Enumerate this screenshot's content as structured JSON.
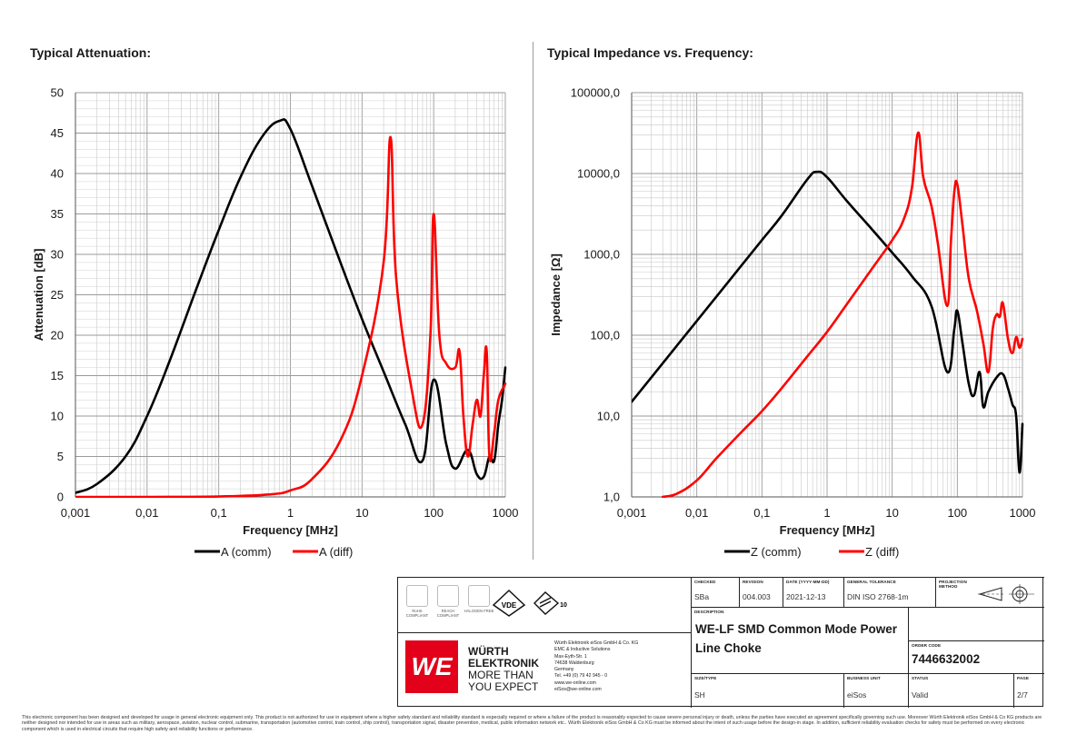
{
  "charts": {
    "left_title": "Typical Attenuation:",
    "right_title": "Typical Impedance vs. Frequency:"
  },
  "chart_data": [
    {
      "type": "line",
      "title": "Typical Attenuation:",
      "xlabel": "Frequency [MHz]",
      "ylabel": "Attenuation [dB]",
      "xscale": "log",
      "xlim": [
        0.001,
        1000
      ],
      "ylim": [
        0,
        50
      ],
      "xticks": [
        "0,001",
        "0,01",
        "0,1",
        "1",
        "10",
        "100",
        "1000"
      ],
      "yticks": [
        "0",
        "5",
        "10",
        "15",
        "20",
        "25",
        "30",
        "35",
        "40",
        "45",
        "50"
      ],
      "grid": true,
      "legend_position": "bottom",
      "series": [
        {
          "name": "A (comm)",
          "color": "#000000",
          "x": [
            0.001,
            0.002,
            0.005,
            0.01,
            0.02,
            0.05,
            0.1,
            0.2,
            0.4,
            0.7,
            1,
            2,
            5,
            10,
            20,
            40,
            70,
            100,
            150,
            200,
            300,
            400,
            500,
            600,
            700,
            800,
            900,
            1000
          ],
          "y": [
            0.5,
            1.6,
            5,
            10,
            16.5,
            26,
            33,
            39.5,
            44.5,
            46.5,
            45.5,
            38.5,
            29,
            22,
            15.5,
            9,
            4.5,
            14.5,
            6.5,
            3.5,
            5.8,
            2.8,
            2.5,
            5,
            4.5,
            9,
            12,
            16
          ]
        },
        {
          "name": "A (diff)",
          "color": "#ff0000",
          "x": [
            0.001,
            0.01,
            0.1,
            0.5,
            1,
            2,
            5,
            10,
            20,
            25,
            30,
            50,
            70,
            90,
            100,
            120,
            150,
            200,
            230,
            260,
            300,
            350,
            400,
            450,
            500,
            550,
            600,
            700,
            800,
            1000
          ],
          "y": [
            0,
            0,
            0.05,
            0.3,
            0.8,
            2.2,
            7,
            15,
            29,
            44.5,
            27,
            13,
            9,
            20,
            35,
            20,
            16.5,
            16,
            18,
            10,
            5,
            9,
            12,
            10,
            15,
            18,
            5,
            8,
            12,
            14
          ]
        }
      ]
    },
    {
      "type": "line",
      "title": "Typical Impedance vs. Frequency:",
      "xlabel": "Frequency [MHz]",
      "ylabel": "Impedance [Ω]",
      "xscale": "log",
      "yscale": "log",
      "xlim": [
        0.001,
        1000
      ],
      "ylim": [
        1,
        100000
      ],
      "xticks": [
        "0,001",
        "0,01",
        "0,1",
        "1",
        "10",
        "100",
        "1000"
      ],
      "yticks": [
        "1,0",
        "10,0",
        "100,0",
        "1000,0",
        "10000,0",
        "100000,0"
      ],
      "grid": true,
      "legend_position": "bottom",
      "series": [
        {
          "name": "Z  (comm)",
          "color": "#000000",
          "x": [
            0.001,
            0.002,
            0.005,
            0.01,
            0.02,
            0.05,
            0.1,
            0.2,
            0.5,
            0.7,
            1,
            2,
            5,
            10,
            20,
            40,
            70,
            90,
            100,
            120,
            150,
            180,
            220,
            250,
            300,
            400,
            500,
            600,
            700,
            800,
            900,
            1000
          ],
          "y": [
            15,
            30,
            75,
            150,
            300,
            750,
            1500,
            3000,
            8500,
            10500,
            9000,
            4600,
            2000,
            1050,
            540,
            230,
            35,
            120,
            200,
            80,
            25,
            18,
            35,
            13,
            20,
            30,
            33,
            22,
            14,
            10,
            2,
            8
          ]
        },
        {
          "name": "Z (diff)",
          "color": "#ff0000",
          "x": [
            0.003,
            0.005,
            0.01,
            0.02,
            0.05,
            0.1,
            0.2,
            0.5,
            1,
            2,
            5,
            10,
            15,
            20,
            25,
            30,
            40,
            50,
            70,
            80,
            90,
            100,
            120,
            150,
            200,
            250,
            300,
            350,
            400,
            450,
            500,
            600,
            700,
            800,
            900,
            1000
          ],
          "y": [
            1,
            1.1,
            1.6,
            3,
            6.5,
            11.5,
            22,
            55,
            110,
            240,
            680,
            1500,
            2700,
            6500,
            32000,
            9000,
            4000,
            1400,
            230,
            1500,
            6000,
            7300,
            2300,
            500,
            200,
            80,
            35,
            120,
            180,
            170,
            250,
            90,
            60,
            95,
            70,
            90
          ]
        }
      ]
    }
  ],
  "titleblock": {
    "checked_label": "CHECKED",
    "checked": "SBa",
    "revision_label": "REVISION",
    "revision": "004.003",
    "date_label": "DATE (YYYY-MM-DD)",
    "date": "2021-12-13",
    "tolerance_label": "GENERAL TOLERANCE",
    "tolerance": "DIN ISO 2768-1m",
    "projection_label": "PROJECTION METHOD",
    "description_label": "DESCRIPTION",
    "description_line1": "WE-LF SMD Common Mode Power",
    "description_line2": "Line Choke",
    "order_label": "ORDER CODE",
    "order_code": "7446632002",
    "size_label": "SIZE/TYPE",
    "size": "SH",
    "unit_label": "BUSINESS UNIT",
    "unit": "eiSos",
    "status_label": "STATUS",
    "status": "Valid",
    "page_label": "PAGE",
    "page": "2/7",
    "certs": [
      "RoHS COMPLIANT",
      "REACH COMPLIANT",
      "HALOGEN FREE"
    ],
    "vde": "VDE",
    "iec_number": "10",
    "brand_line1": "WÜRTH",
    "brand_line2": "ELEKTRONIK",
    "brand_line3": "MORE THAN",
    "brand_line4": "YOU EXPECT",
    "logo_text": "WE",
    "address": [
      "Würth Elektronik eiSos GmbH & Co. KG",
      "EMC & Inductive Solutions",
      "Max-Eyth-Str. 1",
      "74638 Waldenburg",
      "Germany",
      "Tel. +49 (0) 79 42 945 - 0",
      "www.we-online.com",
      "eiSos@we-online.com"
    ],
    "brand_color": "#e3001b"
  },
  "disclaimer": "This electronic component has been designed and developed for usage in general electronic equipment only. This product is not authorized for use in equipment where a higher safety standard and reliability standard is especially required or where a failure of the product is reasonably expected to cause severe personal injury or death, unless the parties have executed an agreement specifically governing such use. Moreover Würth Elektronik eiSos GmbH & Co KG products are neither designed nor intended for use in areas such as military, aerospace, aviation, nuclear control, submarine, transportation (automotive control, train control, ship control), transportation signal, disaster prevention, medical, public information network etc.. Würth Elektronik eiSos GmbH & Co KG must be informed about the intent of such usage before the design-in stage. In addition, sufficient reliability evaluation checks for safety must be performed on every electronic component which is used in electrical circuits that require high safety and reliability functions or performance."
}
